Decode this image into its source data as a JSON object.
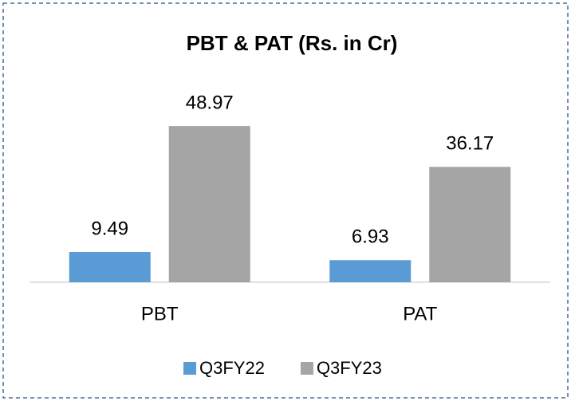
{
  "chart_data": {
    "type": "bar",
    "title": "PBT & PAT (Rs. in Cr)",
    "categories": [
      "PBT",
      "PAT"
    ],
    "series": [
      {
        "name": "Q3FY22",
        "color": "#5b9bd5",
        "values": [
          9.49,
          6.93
        ]
      },
      {
        "name": "Q3FY23",
        "color": "#a5a5a5",
        "values": [
          48.97,
          36.17
        ]
      }
    ],
    "ylim": [
      0,
      60
    ],
    "grid": false,
    "legend": "bottom"
  }
}
